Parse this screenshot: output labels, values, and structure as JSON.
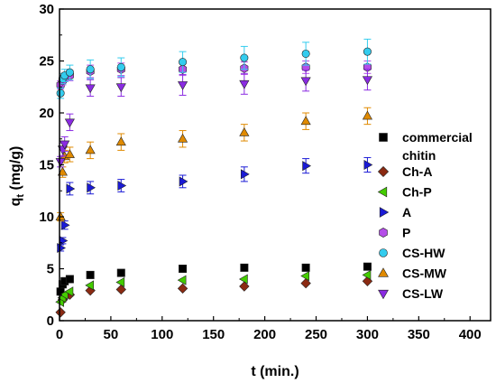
{
  "chart_data": {
    "type": "scatter",
    "xlabel": "t (min.)",
    "ylabel_main": "q",
    "ylabel_sub": "t",
    "ylabel_unit": " (mg/g)",
    "xlim": [
      0,
      420
    ],
    "ylim": [
      0,
      30
    ],
    "xticks": [
      0,
      50,
      100,
      150,
      200,
      250,
      300,
      350,
      400
    ],
    "yticks": [
      0,
      5,
      10,
      15,
      20,
      25,
      30
    ],
    "grid": false,
    "legend_position": "right",
    "series": [
      {
        "name": "commercial chitin",
        "name_lines": [
          "commercial",
          "chitin"
        ],
        "marker": "square",
        "color": "#000000",
        "x": [
          1,
          3,
          5,
          10,
          30,
          60,
          120,
          180,
          240,
          300
        ],
        "y": [
          2.8,
          3.5,
          3.8,
          4.0,
          4.4,
          4.6,
          5.0,
          5.1,
          5.1,
          5.2
        ],
        "err": [
          0,
          0,
          0,
          0,
          0,
          0,
          0,
          0,
          0,
          0
        ]
      },
      {
        "name": "Ch-A",
        "marker": "diamond",
        "color": "#8b2a12",
        "x": [
          1,
          3,
          5,
          10,
          30,
          60,
          120,
          180,
          240,
          300
        ],
        "y": [
          0.8,
          2.0,
          2.3,
          2.5,
          2.9,
          3.0,
          3.1,
          3.3,
          3.6,
          3.8
        ],
        "err": [
          0,
          0,
          0,
          0,
          0,
          0,
          0,
          0,
          0,
          0
        ]
      },
      {
        "name": "Ch-P",
        "marker": "triangle-left",
        "color": "#44cc00",
        "x": [
          1,
          3,
          5,
          10,
          30,
          60,
          120,
          180,
          240,
          300
        ],
        "y": [
          1.8,
          2.2,
          2.5,
          2.8,
          3.4,
          3.7,
          3.9,
          4.0,
          4.3,
          4.4
        ],
        "err": [
          0,
          0,
          0,
          0,
          0,
          0,
          0,
          0,
          0,
          0
        ]
      },
      {
        "name": "A",
        "marker": "triangle-right",
        "color": "#1a1ad6",
        "x": [
          1,
          3,
          5,
          10,
          30,
          60,
          120,
          180,
          240,
          300
        ],
        "y": [
          7.0,
          7.7,
          9.2,
          12.7,
          12.8,
          13.0,
          13.4,
          14.1,
          14.9,
          15.0
        ],
        "err": [
          0.3,
          0.3,
          0.4,
          0.6,
          0.6,
          0.6,
          0.6,
          0.7,
          0.7,
          0.7
        ]
      },
      {
        "name": "P",
        "marker": "hexagon",
        "color": "#b44ee8",
        "x": [
          1,
          3,
          5,
          10,
          30,
          60,
          120,
          180,
          240,
          300
        ],
        "y": [
          22.7,
          23.1,
          23.4,
          23.6,
          24.0,
          24.2,
          24.2,
          24.3,
          24.4,
          24.4
        ],
        "err": [
          0.4,
          0.4,
          0.4,
          0.5,
          0.6,
          0.6,
          0.6,
          0.6,
          0.6,
          0.6
        ]
      },
      {
        "name": "CS-HW",
        "marker": "circle",
        "color": "#33ccee",
        "x": [
          1,
          3,
          5,
          10,
          30,
          60,
          120,
          180,
          240,
          300
        ],
        "y": [
          21.9,
          23.3,
          23.6,
          23.9,
          24.2,
          24.4,
          24.9,
          25.3,
          25.7,
          25.9
        ],
        "err": [
          0.5,
          0.5,
          0.6,
          0.7,
          0.9,
          0.9,
          1.0,
          1.1,
          1.1,
          1.2
        ]
      },
      {
        "name": "CS-MW",
        "marker": "triangle-up",
        "color": "#e08a00",
        "x": [
          1,
          3,
          5,
          10,
          30,
          60,
          120,
          180,
          240,
          300
        ],
        "y": [
          10.0,
          14.3,
          15.8,
          16.0,
          16.4,
          17.2,
          17.5,
          18.1,
          19.2,
          19.7
        ],
        "err": [
          0.4,
          0.5,
          0.6,
          0.7,
          0.8,
          0.8,
          0.8,
          0.8,
          0.8,
          0.8
        ]
      },
      {
        "name": "CS-LW",
        "marker": "triangle-down",
        "color": "#8a2be2",
        "x": [
          1,
          3,
          5,
          10,
          30,
          60,
          120,
          180,
          240,
          300
        ],
        "y": [
          15.3,
          16.5,
          17.0,
          19.1,
          22.4,
          22.5,
          22.7,
          22.8,
          23.1,
          23.2
        ],
        "err": [
          0.5,
          0.6,
          0.7,
          0.8,
          0.8,
          0.9,
          1.0,
          1.0,
          1.0,
          1.0
        ]
      }
    ]
  }
}
